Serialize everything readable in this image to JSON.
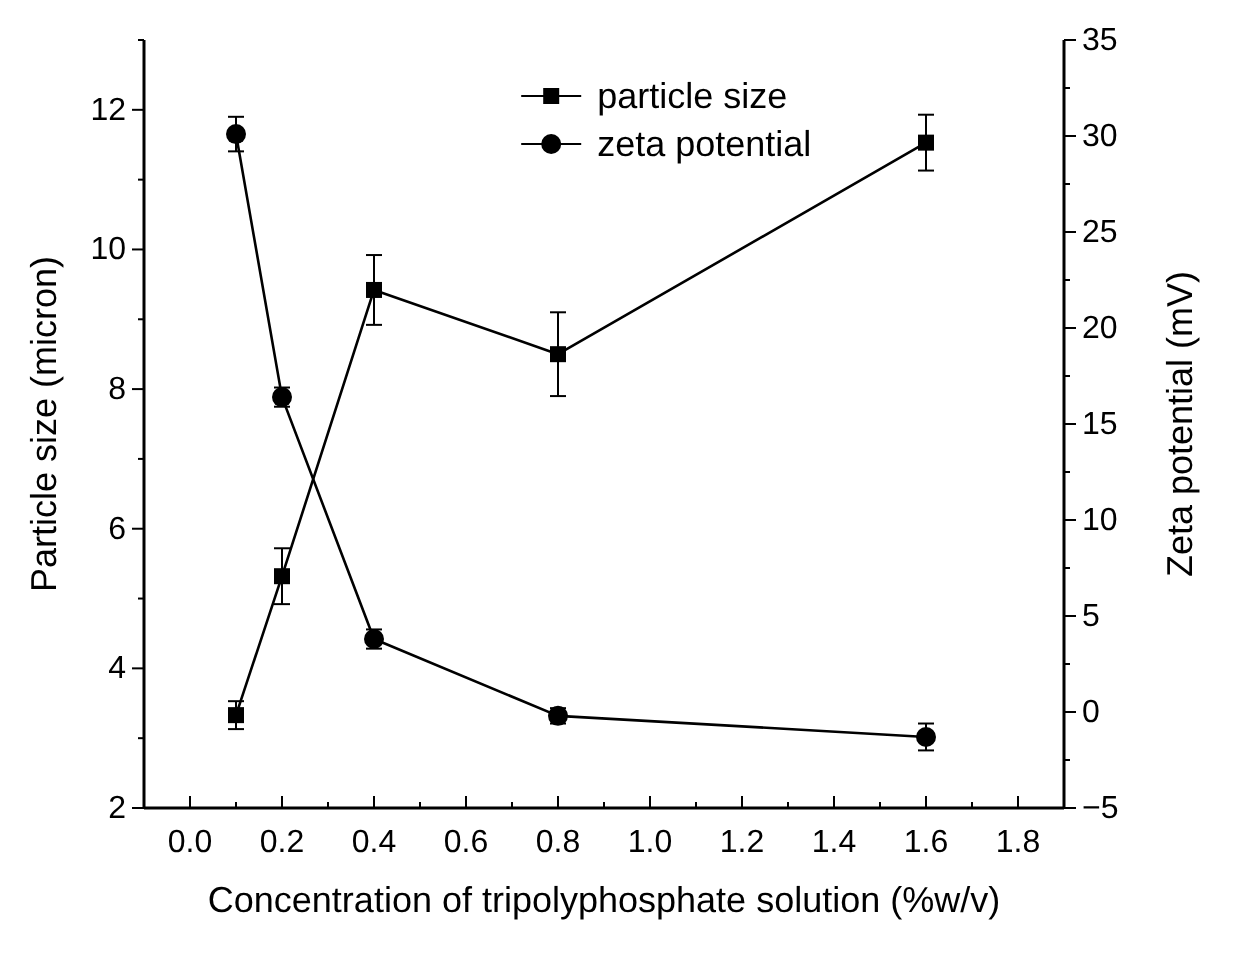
{
  "chart_data": {
    "type": "line",
    "xlabel": "Concentration of tripolyphosphate solution (%w/v)",
    "ylabel": "Particle size (micron)",
    "y2label": "Zeta potential (mV)",
    "x": [
      0.1,
      0.2,
      0.4,
      0.8,
      1.6
    ],
    "series": [
      {
        "name": "particle size",
        "color": "#000000",
        "marker": "square",
        "values": [
          3.33,
          5.32,
          9.42,
          8.5,
          11.53
        ],
        "errors": [
          0.2,
          0.4,
          0.5,
          0.6,
          0.4
        ]
      },
      {
        "name": "zeta potential",
        "color": "#000000",
        "marker": "circle",
        "axis": "y2",
        "values": [
          30.1,
          16.4,
          3.8,
          -0.2,
          -1.3
        ],
        "errors": [
          0.9,
          0.5,
          0.5,
          0.4,
          0.7
        ]
      }
    ],
    "xlim": [
      -0.1,
      1.9
    ],
    "xticks": [
      {
        "value": -0.1,
        "label": null
      },
      {
        "value": 0,
        "label": "0.0"
      },
      {
        "value": 0.1,
        "label": null
      },
      0.2,
      {
        "value": 0.3,
        "label": null
      },
      0.4,
      {
        "value": 0.5,
        "label": null
      },
      0.6,
      {
        "value": 0.7,
        "label": null
      },
      0.8,
      {
        "value": 0.9,
        "label": null
      },
      {
        "value": 1,
        "label": "1.0"
      },
      {
        "value": 1.1,
        "label": null
      },
      1.2,
      {
        "value": 1.3,
        "label": null
      },
      1.4,
      {
        "value": 1.5,
        "label": null
      },
      1.6,
      {
        "value": 1.7,
        "label": null
      },
      1.8,
      {
        "value": 1.9,
        "label": null
      }
    ],
    "ylim": [
      2,
      13
    ],
    "yticks": [
      2,
      {
        "value": 3,
        "label": null
      },
      4,
      {
        "value": 5,
        "label": null
      },
      6,
      {
        "value": 7,
        "label": null
      },
      8,
      {
        "value": 9,
        "label": null
      },
      10,
      {
        "value": 11,
        "label": null
      },
      12,
      {
        "value": 13,
        "label": null
      }
    ],
    "y2lim": [
      -5,
      35
    ],
    "y2ticks": [
      -5,
      {
        "value": -2.5,
        "label": null
      },
      0,
      {
        "value": 2.5,
        "label": null
      },
      5,
      {
        "value": 7.5,
        "label": null
      },
      10,
      {
        "value": 12.5,
        "label": null
      },
      15,
      {
        "value": 17.5,
        "label": null
      },
      20,
      {
        "value": 22.5,
        "label": null
      },
      25,
      {
        "value": 27.5,
        "label": null
      },
      30,
      {
        "value": 32.5,
        "label": null
      },
      35
    ],
    "legend": "top",
    "grid": false,
    "line_style": "solid"
  }
}
